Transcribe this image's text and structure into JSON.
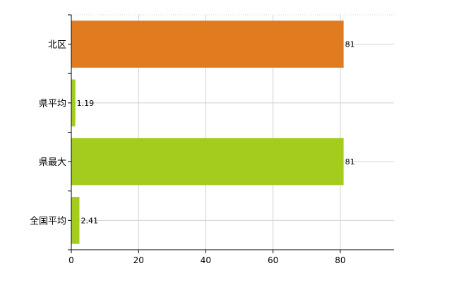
{
  "chart_data": {
    "type": "bar",
    "orientation": "horizontal",
    "categories": [
      "北区",
      "県平均",
      "県最大",
      "全国平均"
    ],
    "values": [
      81,
      1.19,
      81,
      2.41
    ],
    "data_labels": [
      "81",
      "1.19",
      "81",
      "2.41"
    ],
    "bar_colors": [
      "#e07b20",
      "#a3cc1e",
      "#a3cc1e",
      "#a3cc1e"
    ],
    "xlim": [
      0,
      96
    ],
    "xticks": [
      0,
      20,
      40,
      60,
      80
    ],
    "xtick_labels": [
      "0",
      "20",
      "40",
      "60",
      "80"
    ],
    "grid": true,
    "legend": "none"
  }
}
